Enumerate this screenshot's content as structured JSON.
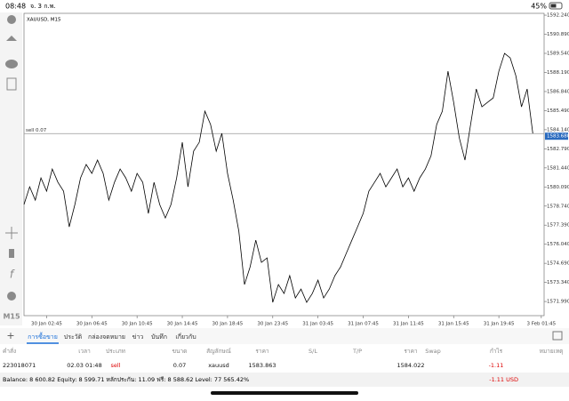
{
  "status_bar": {
    "time": "08:48",
    "date": "จ. 3 ก.พ.",
    "battery": "45%"
  },
  "chart_data": {
    "type": "line",
    "title": "XAUUSD, M15",
    "color": "#000000",
    "timeframe": "M15",
    "values": [
      1578.85,
      1580.1,
      1579.16,
      1580.73,
      1579.79,
      1581.36,
      1580.42,
      1579.79,
      1577.27,
      1578.85,
      1580.73,
      1581.68,
      1581.05,
      1581.99,
      1581.05,
      1579.16,
      1580.42,
      1581.36,
      1580.73,
      1579.79,
      1581.05,
      1580.42,
      1578.22,
      1580.42,
      1578.85,
      1577.9,
      1578.85,
      1580.73,
      1583.25,
      1580.1,
      1582.62,
      1583.25,
      1585.45,
      1584.51,
      1582.62,
      1583.88,
      1581.05,
      1579.16,
      1576.96,
      1573.19,
      1574.44,
      1576.33,
      1574.76,
      1575.07,
      1571.93,
      1573.19,
      1572.56,
      1573.82,
      1572.24,
      1572.87,
      1571.93,
      1572.56,
      1573.5,
      1572.24,
      1572.87,
      1573.82,
      1574.44,
      1575.39,
      1576.33,
      1577.27,
      1578.22,
      1579.79,
      1580.42,
      1581.05,
      1580.1,
      1580.73,
      1581.36,
      1580.1,
      1580.73,
      1579.79,
      1580.73,
      1581.36,
      1582.3,
      1584.51,
      1585.45,
      1588.28,
      1586.08,
      1583.56,
      1581.99,
      1584.51,
      1587.02,
      1585.76,
      1586.08,
      1586.39,
      1588.28,
      1589.54,
      1589.22,
      1587.96,
      1585.76,
      1587.02,
      1583.88
    ],
    "xlim": [
      0,
      92
    ],
    "xticks": [
      {
        "value": 4,
        "label": "30 Jan 02:45"
      },
      {
        "value": 12,
        "label": "30 Jan 06:45"
      },
      {
        "value": 20,
        "label": "30 Jan 10:45"
      },
      {
        "value": 28,
        "label": "30 Jan 14:45"
      },
      {
        "value": 36,
        "label": "30 Jan 18:45"
      },
      {
        "value": 44,
        "label": "30 Jan 23:45"
      },
      {
        "value": 52,
        "label": "31 Jan 03:45"
      },
      {
        "value": 60,
        "label": "31 Jan 07:45"
      },
      {
        "value": 68,
        "label": "31 Jan 11:45"
      },
      {
        "value": 76,
        "label": "31 Jan 15:45"
      },
      {
        "value": 84,
        "label": "31 Jan 19:45"
      },
      {
        "value": 91.5,
        "label": "3 Feb 01:45"
      }
    ],
    "ylim": [
      1570.99,
      1592.37
    ],
    "yticks": [
      {
        "value": 1592.24,
        "label": "1592.240"
      },
      {
        "value": 1590.89,
        "label": "1590.890"
      },
      {
        "value": 1589.54,
        "label": "1589.540"
      },
      {
        "value": 1588.19,
        "label": "1588.190"
      },
      {
        "value": 1586.84,
        "label": "1586.840"
      },
      {
        "value": 1585.49,
        "label": "1585.490"
      },
      {
        "value": 1584.14,
        "label": "1584.140"
      },
      {
        "value": 1582.79,
        "label": "1582.790"
      },
      {
        "value": 1581.44,
        "label": "1581.440"
      },
      {
        "value": 1580.09,
        "label": "1580.090"
      },
      {
        "value": 1578.74,
        "label": "1578.740"
      },
      {
        "value": 1577.39,
        "label": "1577.390"
      },
      {
        "value": 1576.04,
        "label": "1576.040"
      },
      {
        "value": 1574.69,
        "label": "1574.690"
      },
      {
        "value": 1573.34,
        "label": "1573.340"
      },
      {
        "value": 1571.99,
        "label": "1571.990"
      }
    ],
    "order_line": {
      "label": "sell 0.07",
      "value": 1583.863
    },
    "price_tag": {
      "value": 1583.68,
      "label": "1583.680"
    }
  },
  "tabs": [
    "การซื้อขาย",
    "ประวัติ",
    "กล่องจดหมาย",
    "ข่าว",
    "บันทึก",
    "เกี่ยวกับ"
  ],
  "table": {
    "columns": [
      "คำสั่ง",
      "เวลา",
      "ประเภท",
      "ขนาด",
      "สัญลักษณ์",
      "ราคา",
      "S/L",
      "T/P",
      "ราคา",
      "Swap",
      "กำไร",
      "หมายเหตุ"
    ],
    "row": {
      "order": "223018071",
      "time": "02.03 01:48",
      "type": "sell",
      "volume": "0.07",
      "symbol": "xauusd",
      "price": "1583.863",
      "current_price": "1584.022",
      "profit": "-1.11"
    }
  },
  "footer": {
    "summary": "Balance: 8 600.82 Equity: 8 599.71 หลักประกัน: 11.09 ฟรี: 8 588.62 Level: 77 565.42%",
    "profit": "-1.11  USD"
  }
}
